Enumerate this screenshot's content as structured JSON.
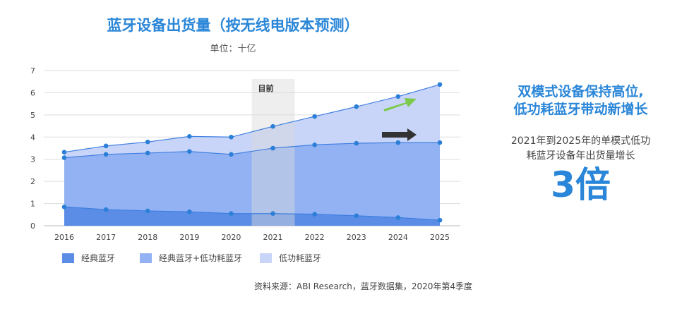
{
  "chart_data": {
    "type": "area",
    "title": "蓝牙设备出货量（按无线电版本预测）",
    "subtitle": "单位：十亿",
    "categories": [
      "2016",
      "2017",
      "2018",
      "2019",
      "2020",
      "2021",
      "2022",
      "2023",
      "2024",
      "2025"
    ],
    "ylim": [
      0,
      7
    ],
    "yticks": [
      0,
      1,
      2,
      3,
      4,
      5,
      6,
      7
    ],
    "grid": true,
    "series": [
      {
        "name": "经典蓝牙",
        "values": [
          0.85,
          0.73,
          0.67,
          0.63,
          0.55,
          0.55,
          0.52,
          0.45,
          0.37,
          0.25
        ],
        "color": "#5b8de6"
      },
      {
        "name": "经典蓝牙+低功耗蓝牙",
        "values": [
          3.07,
          3.22,
          3.28,
          3.35,
          3.22,
          3.5,
          3.65,
          3.72,
          3.75,
          3.75
        ],
        "color": "#93b2f3"
      },
      {
        "name": "低功耗蓝牙",
        "values": [
          3.32,
          3.6,
          3.78,
          4.03,
          4.0,
          4.48,
          4.93,
          5.37,
          5.83,
          6.37
        ],
        "color": "#c8d5f9"
      }
    ],
    "highlight": {
      "label": "目前",
      "category": "2021"
    },
    "legend_position": "bottom",
    "source": "资料来源：ABI Research，蓝牙数据集，2020年第4季度"
  },
  "panel": {
    "headline_1": "双模式设备保持高位,",
    "headline_2": "低功耗蓝牙带动新增长",
    "desc_1": "2021年到2025年的单模式低功",
    "desc_2": "耗蓝牙设备年出货量增长",
    "big": "3倍"
  },
  "colors": {
    "accent": "#2a86d8",
    "point": "#2b7fd6",
    "green_arrow": "#7dc94a",
    "dark_arrow": "#333333",
    "highlight_band": "#d9d9d9"
  }
}
